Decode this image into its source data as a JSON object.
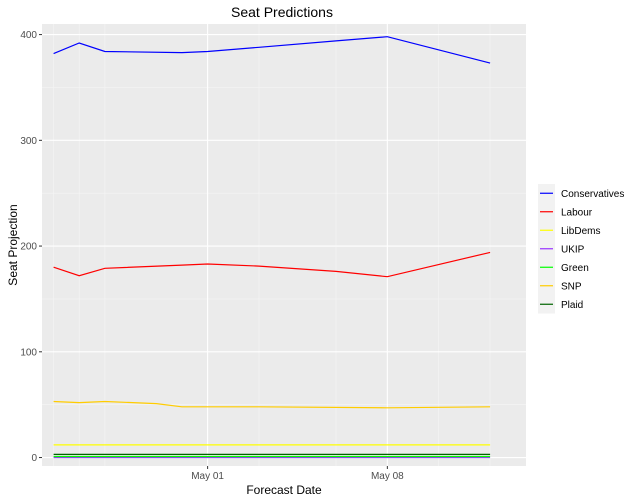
{
  "chart_data": {
    "type": "line",
    "title": "Seat Predictions",
    "xlabel": "Forecast Date",
    "ylabel": "Seat Projection",
    "x_tick_labels": [
      "May 01",
      "May 08"
    ],
    "y_tick_labels": [
      "0",
      "100",
      "200",
      "300",
      "400"
    ],
    "ylim": [
      -8,
      410
    ],
    "grid": true,
    "legend_position": "right",
    "x_positions": [
      0,
      1,
      2,
      6,
      8,
      11,
      15,
      17
    ],
    "x_labeled_positions": [
      6,
      13
    ],
    "series": [
      {
        "name": "Conservatives",
        "color": "#0000ff",
        "values": [
          [
            0,
            382
          ],
          [
            1,
            392
          ],
          [
            2,
            384
          ],
          [
            5,
            383
          ],
          [
            6,
            384
          ],
          [
            8,
            388
          ],
          [
            11,
            394
          ],
          [
            13,
            398
          ],
          [
            17,
            373
          ]
        ]
      },
      {
        "name": "Labour",
        "color": "#ff0000",
        "values": [
          [
            0,
            180
          ],
          [
            1,
            172
          ],
          [
            2,
            179
          ],
          [
            5,
            182
          ],
          [
            6,
            183
          ],
          [
            8,
            181
          ],
          [
            11,
            176
          ],
          [
            13,
            171
          ],
          [
            17,
            194
          ]
        ]
      },
      {
        "name": "LibDems",
        "color": "#ffff00",
        "values": [
          [
            0,
            12
          ],
          [
            1,
            12
          ],
          [
            2,
            12
          ],
          [
            6,
            12
          ],
          [
            10,
            12
          ],
          [
            13,
            12
          ],
          [
            17,
            12
          ]
        ]
      },
      {
        "name": "UKIP",
        "color": "#9933ff",
        "values": [
          [
            0,
            0
          ],
          [
            17,
            0
          ]
        ]
      },
      {
        "name": "Green",
        "color": "#00ff00",
        "values": [
          [
            0,
            1
          ],
          [
            17,
            1
          ]
        ]
      },
      {
        "name": "SNP",
        "color": "#ffcc00",
        "values": [
          [
            0,
            53
          ],
          [
            1,
            52
          ],
          [
            2,
            53
          ],
          [
            4,
            51
          ],
          [
            5,
            48
          ],
          [
            8,
            48
          ],
          [
            13,
            47
          ],
          [
            17,
            48
          ]
        ]
      },
      {
        "name": "Plaid",
        "color": "#006400",
        "values": [
          [
            0,
            3
          ],
          [
            17,
            3
          ]
        ]
      }
    ]
  }
}
